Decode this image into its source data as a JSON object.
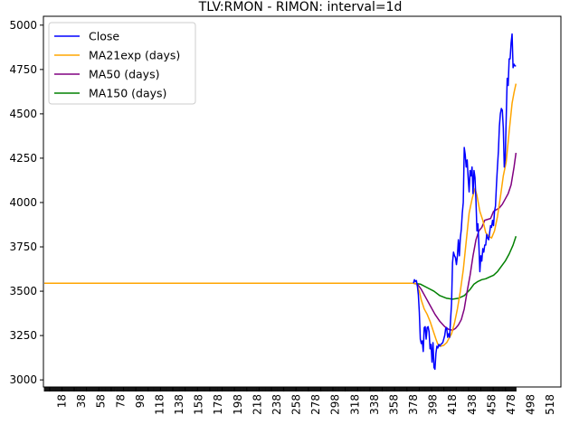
{
  "chart_data": {
    "type": "line",
    "title": "TLV:RMON - RIMON: interval=1d",
    "xlabel": "",
    "ylabel": "",
    "xlim": [
      -1,
      529
    ],
    "ylim": [
      2960,
      5050
    ],
    "x_ticks": [
      18,
      38,
      58,
      78,
      98,
      118,
      138,
      158,
      178,
      198,
      218,
      238,
      258,
      278,
      298,
      318,
      338,
      358,
      378,
      398,
      418,
      438,
      458,
      478,
      498,
      518
    ],
    "y_ticks": [
      3000,
      3250,
      3500,
      3750,
      4000,
      4250,
      4500,
      4750,
      5000
    ],
    "grid": false,
    "legend_position": "top-left",
    "series": [
      {
        "name": "Close",
        "color": "#0000ff",
        "points": [
          [
            378,
            3545
          ],
          [
            379,
            3565
          ],
          [
            380,
            3555
          ],
          [
            381,
            3560
          ],
          [
            382,
            3530
          ],
          [
            383,
            3480
          ],
          [
            384,
            3380
          ],
          [
            385,
            3230
          ],
          [
            386,
            3205
          ],
          [
            387,
            3220
          ],
          [
            388,
            3160
          ],
          [
            389,
            3295
          ],
          [
            390,
            3300
          ],
          [
            391,
            3230
          ],
          [
            392,
            3295
          ],
          [
            393,
            3300
          ],
          [
            394,
            3270
          ],
          [
            395,
            3175
          ],
          [
            396,
            3200
          ],
          [
            397,
            3100
          ],
          [
            398,
            3210
          ],
          [
            399,
            3070
          ],
          [
            400,
            3060
          ],
          [
            401,
            3150
          ],
          [
            402,
            3190
          ],
          [
            403,
            3180
          ],
          [
            404,
            3200
          ],
          [
            405,
            3190
          ],
          [
            406,
            3200
          ],
          [
            407,
            3205
          ],
          [
            408,
            3210
          ],
          [
            409,
            3230
          ],
          [
            410,
            3250
          ],
          [
            411,
            3290
          ],
          [
            412,
            3295
          ],
          [
            413,
            3240
          ],
          [
            414,
            3260
          ],
          [
            415,
            3240
          ],
          [
            416,
            3340
          ],
          [
            417,
            3430
          ],
          [
            418,
            3660
          ],
          [
            419,
            3720
          ],
          [
            420,
            3700
          ],
          [
            421,
            3690
          ],
          [
            422,
            3650
          ],
          [
            423,
            3700
          ],
          [
            424,
            3790
          ],
          [
            425,
            3700
          ],
          [
            426,
            3800
          ],
          [
            427,
            3850
          ],
          [
            428,
            3940
          ],
          [
            429,
            4000
          ],
          [
            430,
            4310
          ],
          [
            431,
            4270
          ],
          [
            432,
            4200
          ],
          [
            433,
            4240
          ],
          [
            434,
            4140
          ],
          [
            435,
            4060
          ],
          [
            436,
            4180
          ],
          [
            437,
            4150
          ],
          [
            438,
            4200
          ],
          [
            439,
            4050
          ],
          [
            440,
            4180
          ],
          [
            441,
            4140
          ],
          [
            442,
            4010
          ],
          [
            443,
            3840
          ],
          [
            444,
            3880
          ],
          [
            445,
            3760
          ],
          [
            446,
            3610
          ],
          [
            447,
            3700
          ],
          [
            448,
            3670
          ],
          [
            449,
            3740
          ],
          [
            450,
            3720
          ],
          [
            451,
            3760
          ],
          [
            452,
            3760
          ],
          [
            453,
            3820
          ],
          [
            454,
            3800
          ],
          [
            455,
            3790
          ],
          [
            456,
            3830
          ],
          [
            457,
            3870
          ],
          [
            458,
            3860
          ],
          [
            459,
            3900
          ],
          [
            460,
            3870
          ],
          [
            461,
            3950
          ],
          [
            462,
            3980
          ],
          [
            463,
            4100
          ],
          [
            464,
            4200
          ],
          [
            465,
            4290
          ],
          [
            466,
            4430
          ],
          [
            467,
            4500
          ],
          [
            468,
            4530
          ],
          [
            469,
            4520
          ],
          [
            470,
            4420
          ],
          [
            471,
            4200
          ],
          [
            472,
            4250
          ],
          [
            473,
            4480
          ],
          [
            474,
            4700
          ],
          [
            475,
            4660
          ],
          [
            476,
            4810
          ],
          [
            477,
            4810
          ],
          [
            478,
            4900
          ],
          [
            479,
            4950
          ],
          [
            480,
            4760
          ],
          [
            481,
            4780
          ],
          [
            482,
            4770
          ],
          [
            483,
            4770
          ]
        ]
      },
      {
        "name": "MA21exp (days)",
        "color": "#ffa500",
        "points": [
          [
            0,
            3545
          ],
          [
            20,
            3545
          ],
          [
            40,
            3545
          ],
          [
            60,
            3545
          ],
          [
            80,
            3545
          ],
          [
            100,
            3545
          ],
          [
            120,
            3545
          ],
          [
            140,
            3545
          ],
          [
            160,
            3545
          ],
          [
            180,
            3545
          ],
          [
            200,
            3545
          ],
          [
            220,
            3545
          ],
          [
            240,
            3545
          ],
          [
            260,
            3545
          ],
          [
            280,
            3545
          ],
          [
            300,
            3545
          ],
          [
            320,
            3545
          ],
          [
            340,
            3545
          ],
          [
            360,
            3545
          ],
          [
            378,
            3545
          ],
          [
            381,
            3543
          ],
          [
            384,
            3500
          ],
          [
            386,
            3450
          ],
          [
            389,
            3400
          ],
          [
            392,
            3370
          ],
          [
            395,
            3330
          ],
          [
            398,
            3280
          ],
          [
            401,
            3230
          ],
          [
            403,
            3200
          ],
          [
            406,
            3190
          ],
          [
            409,
            3195
          ],
          [
            412,
            3210
          ],
          [
            414,
            3230
          ],
          [
            417,
            3260
          ],
          [
            420,
            3320
          ],
          [
            423,
            3400
          ],
          [
            426,
            3500
          ],
          [
            429,
            3620
          ],
          [
            432,
            3780
          ],
          [
            435,
            3940
          ],
          [
            438,
            4020
          ],
          [
            441,
            4080
          ],
          [
            443,
            4040
          ],
          [
            446,
            3950
          ],
          [
            449,
            3900
          ],
          [
            452,
            3830
          ],
          [
            455,
            3810
          ],
          [
            458,
            3800
          ],
          [
            461,
            3840
          ],
          [
            464,
            3920
          ],
          [
            467,
            4030
          ],
          [
            470,
            4150
          ],
          [
            473,
            4230
          ],
          [
            476,
            4400
          ],
          [
            479,
            4560
          ],
          [
            481,
            4620
          ],
          [
            483,
            4670
          ]
        ]
      },
      {
        "name": "MA50 (days)",
        "color": "#800080",
        "points": [
          [
            0,
            3545
          ],
          [
            20,
            3545
          ],
          [
            40,
            3545
          ],
          [
            60,
            3545
          ],
          [
            80,
            3545
          ],
          [
            100,
            3545
          ],
          [
            120,
            3545
          ],
          [
            140,
            3545
          ],
          [
            160,
            3545
          ],
          [
            180,
            3545
          ],
          [
            200,
            3545
          ],
          [
            220,
            3545
          ],
          [
            240,
            3545
          ],
          [
            260,
            3545
          ],
          [
            280,
            3545
          ],
          [
            300,
            3545
          ],
          [
            320,
            3545
          ],
          [
            340,
            3545
          ],
          [
            360,
            3545
          ],
          [
            378,
            3545
          ],
          [
            382,
            3540
          ],
          [
            386,
            3510
          ],
          [
            390,
            3470
          ],
          [
            395,
            3420
          ],
          [
            400,
            3370
          ],
          [
            405,
            3330
          ],
          [
            410,
            3300
          ],
          [
            414,
            3285
          ],
          [
            418,
            3280
          ],
          [
            421,
            3290
          ],
          [
            424,
            3310
          ],
          [
            427,
            3340
          ],
          [
            430,
            3400
          ],
          [
            433,
            3500
          ],
          [
            436,
            3590
          ],
          [
            439,
            3700
          ],
          [
            442,
            3790
          ],
          [
            445,
            3840
          ],
          [
            448,
            3860
          ],
          [
            451,
            3900
          ],
          [
            454,
            3905
          ],
          [
            457,
            3910
          ],
          [
            460,
            3950
          ],
          [
            463,
            3960
          ],
          [
            466,
            3970
          ],
          [
            469,
            3990
          ],
          [
            472,
            4020
          ],
          [
            475,
            4050
          ],
          [
            478,
            4100
          ],
          [
            481,
            4200
          ],
          [
            483,
            4280
          ]
        ]
      },
      {
        "name": "MA150 (days)",
        "color": "#008000",
        "points": [
          [
            0,
            3545
          ],
          [
            20,
            3545
          ],
          [
            40,
            3545
          ],
          [
            60,
            3545
          ],
          [
            80,
            3545
          ],
          [
            100,
            3545
          ],
          [
            120,
            3545
          ],
          [
            140,
            3545
          ],
          [
            160,
            3545
          ],
          [
            180,
            3545
          ],
          [
            200,
            3545
          ],
          [
            220,
            3545
          ],
          [
            240,
            3545
          ],
          [
            260,
            3545
          ],
          [
            280,
            3545
          ],
          [
            300,
            3545
          ],
          [
            320,
            3545
          ],
          [
            340,
            3545
          ],
          [
            360,
            3545
          ],
          [
            378,
            3545
          ],
          [
            385,
            3540
          ],
          [
            392,
            3520
          ],
          [
            399,
            3500
          ],
          [
            405,
            3475
          ],
          [
            412,
            3460
          ],
          [
            418,
            3455
          ],
          [
            424,
            3460
          ],
          [
            430,
            3475
          ],
          [
            436,
            3510
          ],
          [
            440,
            3540
          ],
          [
            444,
            3555
          ],
          [
            448,
            3565
          ],
          [
            452,
            3570
          ],
          [
            456,
            3580
          ],
          [
            460,
            3590
          ],
          [
            464,
            3610
          ],
          [
            468,
            3640
          ],
          [
            472,
            3670
          ],
          [
            476,
            3710
          ],
          [
            480,
            3760
          ],
          [
            483,
            3810
          ]
        ]
      }
    ]
  }
}
